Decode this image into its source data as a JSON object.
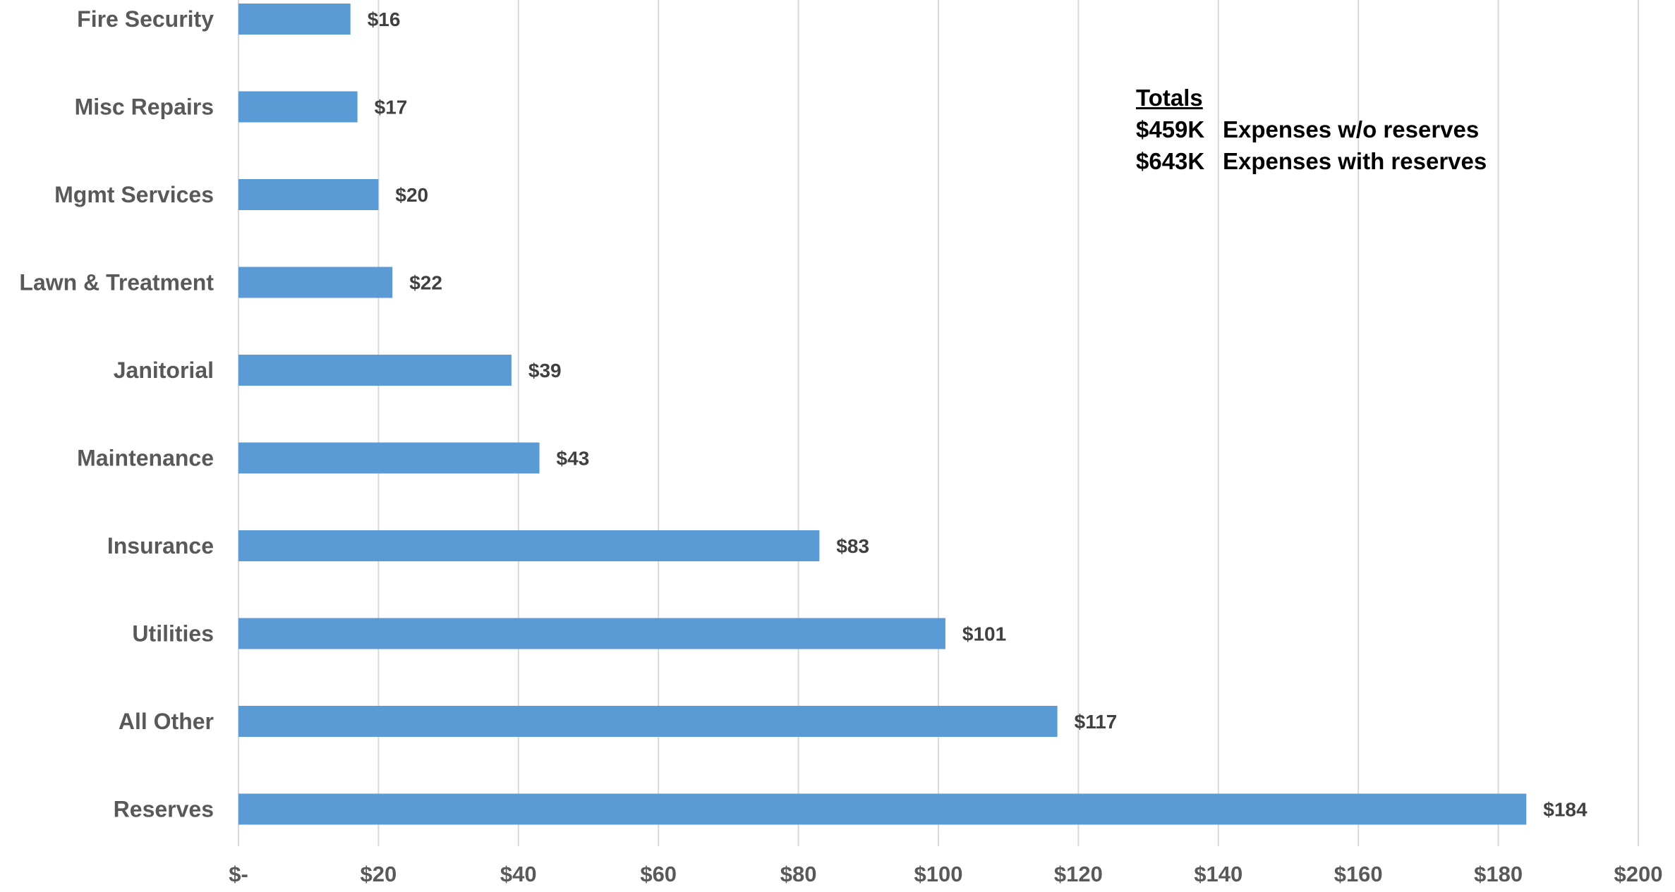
{
  "chart_data": {
    "type": "bar",
    "orientation": "horizontal",
    "title": "",
    "xlabel": "",
    "ylabel": "",
    "categories": [
      "Fire Security",
      "Misc Repairs",
      "Mgmt Services",
      "Lawn & Treatment",
      "Janitorial",
      "Maintenance",
      "Insurance",
      "Utilities",
      "All Other",
      "Reserves"
    ],
    "values": [
      16,
      17,
      20,
      22,
      39,
      43,
      83,
      101,
      117,
      184
    ],
    "data_labels": [
      "$16",
      "$17",
      "$20",
      "$22",
      "$39",
      "$43",
      "$83",
      "$101",
      "$117",
      "$184"
    ],
    "xlim": [
      0,
      200
    ],
    "x_ticks": [
      0,
      20,
      40,
      60,
      80,
      100,
      120,
      140,
      160,
      180,
      200
    ],
    "x_tick_labels": [
      "$-",
      "$20",
      "$40",
      "$60",
      "$80",
      "$100",
      "$120",
      "$140",
      "$160",
      "$180",
      "$200"
    ],
    "grid": "vertical",
    "bar_color": "#5B9BD5",
    "grid_color": "#D9D9D9",
    "label_color": "#595959",
    "value_label_color": "#404040",
    "legend": "none"
  },
  "totals": {
    "heading": "Totals",
    "rows": [
      {
        "amount": "$459K",
        "label": "Expenses w/o reserves"
      },
      {
        "amount": "$643K",
        "label": "Expenses with reserves"
      }
    ]
  }
}
